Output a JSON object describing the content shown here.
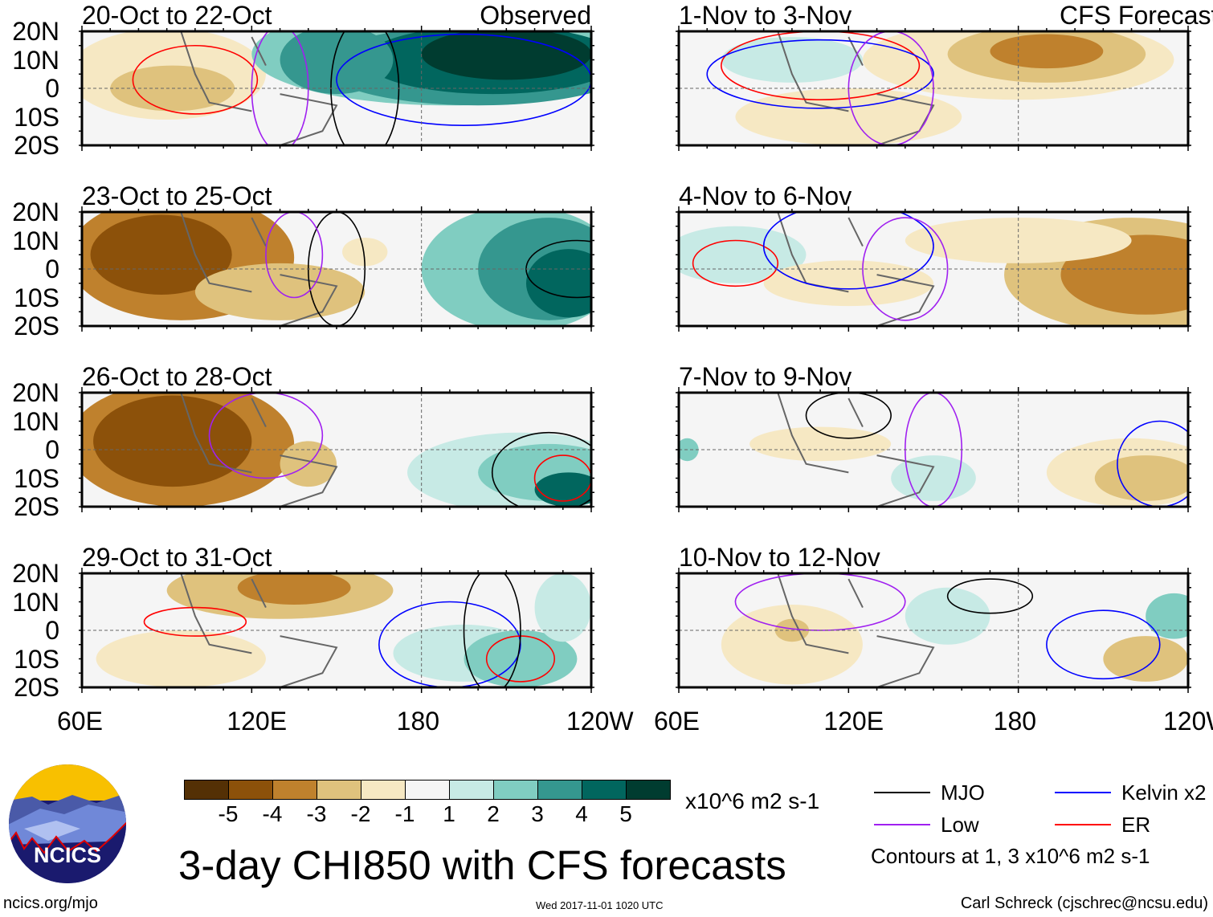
{
  "chart_data": {
    "type": "heatmap",
    "title": "3-day CHI850 with CFS forecasts",
    "variable": "CHI850 anomaly",
    "units": "x10^6 m2 s-1",
    "x_ticks": [
      "60E",
      "120E",
      "180",
      "120W"
    ],
    "y_ticks": [
      "20N",
      "10N",
      "0",
      "10S",
      "20S"
    ],
    "xlim": [
      60,
      240
    ],
    "ylim": [
      -20,
      20
    ],
    "observed_label": "Observed",
    "forecast_label": "CFS Forecast",
    "panels": [
      {
        "title": "20-Oct to 22-Oct",
        "kind": "observed"
      },
      {
        "title": "23-Oct to 25-Oct",
        "kind": "observed"
      },
      {
        "title": "26-Oct to 28-Oct",
        "kind": "observed"
      },
      {
        "title": "29-Oct to 31-Oct",
        "kind": "observed"
      },
      {
        "title": "1-Nov to 3-Nov",
        "kind": "forecast"
      },
      {
        "title": "4-Nov to 6-Nov",
        "kind": "forecast"
      },
      {
        "title": "7-Nov to 9-Nov",
        "kind": "forecast"
      },
      {
        "title": "10-Nov to 12-Nov",
        "kind": "forecast"
      }
    ],
    "colorbar": {
      "labels": [
        "-5",
        "-4",
        "-3",
        "-2",
        "-1",
        "1",
        "2",
        "3",
        "4",
        "5"
      ],
      "colors": [
        "#543005",
        "#8c510a",
        "#bf812d",
        "#dfc27d",
        "#f6e8c3",
        "#f5f5f5",
        "#c7eae5",
        "#80cdc1",
        "#35978f",
        "#01665e",
        "#003c30"
      ]
    },
    "legend": [
      {
        "label": "MJO",
        "color": "#000000"
      },
      {
        "label": "Kelvin x2",
        "color": "#0000ff"
      },
      {
        "label": "Low",
        "color": "#a020f0"
      },
      {
        "label": "ER",
        "color": "#ff0000"
      }
    ],
    "contour_note": "Contours at 1, 3 x10^6 m2 s-1"
  },
  "footer": {
    "logo_text": "NCICS",
    "url": "ncics.org/mjo",
    "timestamp": "Wed 2017-11-01 1020 UTC",
    "author": "Carl Schreck (cjschrec@ncsu.edu)"
  }
}
